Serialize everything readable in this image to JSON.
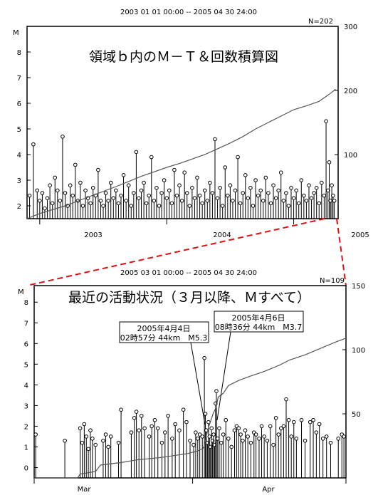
{
  "chart_data": [
    {
      "type": "scatter",
      "panel": "top",
      "header": "2003 01 01 00:00 -- 2005 04 30 24:00",
      "n_label": "N=202",
      "title": "領域ｂ内のＭ－Ｔ＆回数積算図",
      "y_axis_label": "M",
      "ylim": [
        1.5,
        9
      ],
      "y_ticks": [
        "2",
        "3",
        "4",
        "5",
        "6",
        "7",
        "8"
      ],
      "y2lim": [
        0,
        300
      ],
      "y2_ticks": [
        "100",
        "200",
        "300"
      ],
      "xlim": [
        2002.9,
        2005.35
      ],
      "x_tick_labels": [
        "2003",
        "2004",
        "2005"
      ],
      "grid": false,
      "events": [
        {
          "t": 2002.92,
          "m": 2.4
        },
        {
          "t": 2002.95,
          "m": 4.4
        },
        {
          "t": 2002.98,
          "m": 2.6
        },
        {
          "t": 2003.0,
          "m": 2.2
        },
        {
          "t": 2003.02,
          "m": 2.5
        },
        {
          "t": 2003.04,
          "m": 1.9
        },
        {
          "t": 2003.06,
          "m": 2.3
        },
        {
          "t": 2003.08,
          "m": 2.8
        },
        {
          "t": 2003.1,
          "m": 2.1
        },
        {
          "t": 2003.12,
          "m": 3.1
        },
        {
          "t": 2003.14,
          "m": 2.6
        },
        {
          "t": 2003.16,
          "m": 2.2
        },
        {
          "t": 2003.18,
          "m": 4.7
        },
        {
          "t": 2003.2,
          "m": 2.5
        },
        {
          "t": 2003.22,
          "m": 2.0
        },
        {
          "t": 2003.24,
          "m": 2.8
        },
        {
          "t": 2003.26,
          "m": 2.4
        },
        {
          "t": 2003.28,
          "m": 3.6
        },
        {
          "t": 2003.3,
          "m": 2.2
        },
        {
          "t": 2003.32,
          "m": 2.9
        },
        {
          "t": 2003.34,
          "m": 2.0
        },
        {
          "t": 2003.36,
          "m": 2.6
        },
        {
          "t": 2003.38,
          "m": 2.3
        },
        {
          "t": 2003.4,
          "m": 2.1
        },
        {
          "t": 2003.42,
          "m": 2.7
        },
        {
          "t": 2003.44,
          "m": 2.4
        },
        {
          "t": 2003.46,
          "m": 3.4
        },
        {
          "t": 2003.48,
          "m": 2.2
        },
        {
          "t": 2003.5,
          "m": 2.0
        },
        {
          "t": 2003.52,
          "m": 2.5
        },
        {
          "t": 2003.54,
          "m": 2.2
        },
        {
          "t": 2003.56,
          "m": 2.9
        },
        {
          "t": 2003.58,
          "m": 2.3
        },
        {
          "t": 2003.6,
          "m": 2.6
        },
        {
          "t": 2003.62,
          "m": 2.1
        },
        {
          "t": 2003.64,
          "m": 2.4
        },
        {
          "t": 2003.66,
          "m": 3.2
        },
        {
          "t": 2003.68,
          "m": 2.2
        },
        {
          "t": 2003.7,
          "m": 2.8
        },
        {
          "t": 2003.72,
          "m": 2.0
        },
        {
          "t": 2003.74,
          "m": 2.5
        },
        {
          "t": 2003.76,
          "m": 4.1
        },
        {
          "t": 2003.78,
          "m": 2.3
        },
        {
          "t": 2003.8,
          "m": 2.6
        },
        {
          "t": 2003.82,
          "m": 2.9
        },
        {
          "t": 2003.84,
          "m": 2.1
        },
        {
          "t": 2003.86,
          "m": 2.4
        },
        {
          "t": 2003.88,
          "m": 3.9
        },
        {
          "t": 2003.9,
          "m": 2.2
        },
        {
          "t": 2003.92,
          "m": 2.7
        },
        {
          "t": 2003.94,
          "m": 2.0
        },
        {
          "t": 2003.96,
          "m": 2.5
        },
        {
          "t": 2003.98,
          "m": 3.0
        },
        {
          "t": 2004.0,
          "m": 2.3
        },
        {
          "t": 2004.02,
          "m": 2.6
        },
        {
          "t": 2004.04,
          "m": 2.1
        },
        {
          "t": 2004.06,
          "m": 3.4
        },
        {
          "t": 2004.08,
          "m": 2.4
        },
        {
          "t": 2004.1,
          "m": 2.8
        },
        {
          "t": 2004.12,
          "m": 2.2
        },
        {
          "t": 2004.14,
          "m": 3.3
        },
        {
          "t": 2004.16,
          "m": 2.5
        },
        {
          "t": 2004.18,
          "m": 2.0
        },
        {
          "t": 2004.2,
          "m": 2.7
        },
        {
          "t": 2004.22,
          "m": 2.3
        },
        {
          "t": 2004.24,
          "m": 3.1
        },
        {
          "t": 2004.26,
          "m": 2.4
        },
        {
          "t": 2004.28,
          "m": 2.1
        },
        {
          "t": 2004.3,
          "m": 2.6
        },
        {
          "t": 2004.32,
          "m": 2.2
        },
        {
          "t": 2004.34,
          "m": 2.9
        },
        {
          "t": 2004.36,
          "m": 2.5
        },
        {
          "t": 2004.38,
          "m": 4.6
        },
        {
          "t": 2004.4,
          "m": 2.3
        },
        {
          "t": 2004.42,
          "m": 2.7
        },
        {
          "t": 2004.44,
          "m": 2.0
        },
        {
          "t": 2004.46,
          "m": 3.5
        },
        {
          "t": 2004.48,
          "m": 2.4
        },
        {
          "t": 2004.5,
          "m": 2.8
        },
        {
          "t": 2004.52,
          "m": 2.2
        },
        {
          "t": 2004.54,
          "m": 2.6
        },
        {
          "t": 2004.56,
          "m": 3.9
        },
        {
          "t": 2004.58,
          "m": 2.1
        },
        {
          "t": 2004.6,
          "m": 2.5
        },
        {
          "t": 2004.62,
          "m": 3.2
        },
        {
          "t": 2004.64,
          "m": 2.3
        },
        {
          "t": 2004.66,
          "m": 2.7
        },
        {
          "t": 2004.68,
          "m": 2.0
        },
        {
          "t": 2004.7,
          "m": 3.0
        },
        {
          "t": 2004.72,
          "m": 2.4
        },
        {
          "t": 2004.74,
          "m": 2.6
        },
        {
          "t": 2004.76,
          "m": 2.2
        },
        {
          "t": 2004.78,
          "m": 3.1
        },
        {
          "t": 2004.8,
          "m": 2.5
        },
        {
          "t": 2004.82,
          "m": 2.1
        },
        {
          "t": 2004.84,
          "m": 2.8
        },
        {
          "t": 2004.86,
          "m": 2.3
        },
        {
          "t": 2004.88,
          "m": 2.6
        },
        {
          "t": 2004.9,
          "m": 3.3
        },
        {
          "t": 2004.92,
          "m": 2.2
        },
        {
          "t": 2004.94,
          "m": 2.5
        },
        {
          "t": 2004.96,
          "m": 2.0
        },
        {
          "t": 2004.98,
          "m": 2.7
        },
        {
          "t": 2005.0,
          "m": 2.3
        },
        {
          "t": 2005.02,
          "m": 2.6
        },
        {
          "t": 2005.04,
          "m": 2.1
        },
        {
          "t": 2005.06,
          "m": 3.0
        },
        {
          "t": 2005.08,
          "m": 2.4
        },
        {
          "t": 2005.1,
          "m": 2.2
        },
        {
          "t": 2005.12,
          "m": 2.8
        },
        {
          "t": 2005.14,
          "m": 2.3
        },
        {
          "t": 2005.16,
          "m": 2.5
        },
        {
          "t": 2005.18,
          "m": 2.7
        },
        {
          "t": 2005.2,
          "m": 2.1
        },
        {
          "t": 2005.22,
          "m": 2.9
        },
        {
          "t": 2005.24,
          "m": 2.4
        },
        {
          "t": 2005.255,
          "m": 5.3
        },
        {
          "t": 2005.27,
          "m": 2.6
        },
        {
          "t": 2005.28,
          "m": 3.7
        },
        {
          "t": 2005.29,
          "m": 2.2
        },
        {
          "t": 2005.3,
          "m": 2.8
        },
        {
          "t": 2005.31,
          "m": 2.4
        },
        {
          "t": 2005.32,
          "m": 2.2
        }
      ],
      "cumulative": [
        [
          2002.9,
          0
        ],
        [
          2003.0,
          8
        ],
        [
          2003.2,
          20
        ],
        [
          2003.4,
          35
        ],
        [
          2003.6,
          50
        ],
        [
          2003.7,
          58
        ],
        [
          2003.8,
          66
        ],
        [
          2003.9,
          73
        ],
        [
          2004.0,
          80
        ],
        [
          2004.1,
          86
        ],
        [
          2004.2,
          93
        ],
        [
          2004.3,
          100
        ],
        [
          2004.4,
          109
        ],
        [
          2004.5,
          118
        ],
        [
          2004.6,
          128
        ],
        [
          2004.7,
          140
        ],
        [
          2004.8,
          150
        ],
        [
          2004.9,
          160
        ],
        [
          2005.0,
          170
        ],
        [
          2005.1,
          176
        ],
        [
          2005.2,
          183
        ],
        [
          2005.25,
          190
        ],
        [
          2005.3,
          197
        ],
        [
          2005.33,
          202
        ]
      ]
    },
    {
      "type": "scatter",
      "panel": "bottom",
      "header": "2005 03 01 00:00 -- 2005 04 30 24:00",
      "n_label": "N=109",
      "title": "最近の活動状況（３月以降、Ｍすべて）",
      "y_axis_label": "M",
      "ylim": [
        -0.5,
        8.8
      ],
      "y_ticks": [
        "0",
        "1",
        "2",
        "3",
        "4",
        "5",
        "6",
        "7",
        "8"
      ],
      "y2lim": [
        0,
        150
      ],
      "y2_ticks": [
        "50",
        "100",
        "150"
      ],
      "xlim": [
        0,
        61
      ],
      "x_tick_labels": [
        "Mar",
        "Apr"
      ],
      "grid": false,
      "annotations": [
        {
          "line1": "2005年4月4日",
          "line2": "02時57分 44km　M5.3"
        },
        {
          "line1": "2005年4月6日",
          "line2": "08時36分 44km　M3.7"
        }
      ],
      "events": [
        {
          "t": 0.3,
          "m": 1.6
        },
        {
          "t": 6.0,
          "m": 1.3
        },
        {
          "t": 9.0,
          "m": 1.9
        },
        {
          "t": 9.4,
          "m": 1.2
        },
        {
          "t": 9.8,
          "m": 2.1
        },
        {
          "t": 10.2,
          "m": 1.5
        },
        {
          "t": 10.6,
          "m": 0.9
        },
        {
          "t": 11.0,
          "m": 1.8
        },
        {
          "t": 11.4,
          "m": 1.4
        },
        {
          "t": 12.0,
          "m": 1.1
        },
        {
          "t": 13.5,
          "m": 1.3
        },
        {
          "t": 14.0,
          "m": 1.6
        },
        {
          "t": 14.5,
          "m": 1.0
        },
        {
          "t": 15.0,
          "m": 1.5
        },
        {
          "t": 16.5,
          "m": 1.2
        },
        {
          "t": 17.0,
          "m": 2.8
        },
        {
          "t": 19.0,
          "m": 1.7
        },
        {
          "t": 19.6,
          "m": 2.4
        },
        {
          "t": 20.0,
          "m": 2.7
        },
        {
          "t": 20.5,
          "m": 1.8
        },
        {
          "t": 21.0,
          "m": 2.5
        },
        {
          "t": 21.6,
          "m": 1.9
        },
        {
          "t": 22.5,
          "m": 1.5
        },
        {
          "t": 23.0,
          "m": 2.0
        },
        {
          "t": 23.6,
          "m": 2.3
        },
        {
          "t": 24.2,
          "m": 1.9
        },
        {
          "t": 25.0,
          "m": 1.2
        },
        {
          "t": 25.6,
          "m": 1.7
        },
        {
          "t": 26.2,
          "m": 2.5
        },
        {
          "t": 27.0,
          "m": 1.4
        },
        {
          "t": 27.6,
          "m": 2.1
        },
        {
          "t": 28.4,
          "m": 1.8
        },
        {
          "t": 29.2,
          "m": 2.8
        },
        {
          "t": 29.8,
          "m": 2.2
        },
        {
          "t": 30.5,
          "m": 1.3
        },
        {
          "t": 31.2,
          "m": 1.1
        },
        {
          "t": 31.6,
          "m": 1.7
        },
        {
          "t": 32.0,
          "m": 1.4
        },
        {
          "t": 32.4,
          "m": 1.6
        },
        {
          "t": 32.9,
          "m": 1.5
        },
        {
          "t": 33.3,
          "m": 5.3
        },
        {
          "t": 33.5,
          "m": 2.6
        },
        {
          "t": 33.7,
          "m": 1.8
        },
        {
          "t": 33.9,
          "m": 1.2
        },
        {
          "t": 34.1,
          "m": 2.2
        },
        {
          "t": 34.3,
          "m": 1.5
        },
        {
          "t": 34.5,
          "m": 1.0
        },
        {
          "t": 34.7,
          "m": 1.9
        },
        {
          "t": 34.9,
          "m": 1.3
        },
        {
          "t": 35.1,
          "m": 1.6
        },
        {
          "t": 35.3,
          "m": 1.1
        },
        {
          "t": 35.5,
          "m": 3.1
        },
        {
          "t": 35.65,
          "m": 3.7
        },
        {
          "t": 35.9,
          "m": 1.4
        },
        {
          "t": 36.2,
          "m": 1.9
        },
        {
          "t": 36.6,
          "m": 1.2
        },
        {
          "t": 37.0,
          "m": 1.6
        },
        {
          "t": 37.5,
          "m": 2.3
        },
        {
          "t": 38.0,
          "m": 1.4
        },
        {
          "t": 38.6,
          "m": 1.0
        },
        {
          "t": 39.2,
          "m": 1.8
        },
        {
          "t": 39.6,
          "m": 2.0
        },
        {
          "t": 40.0,
          "m": 1.9
        },
        {
          "t": 40.4,
          "m": 1.6
        },
        {
          "t": 40.8,
          "m": 1.3
        },
        {
          "t": 41.3,
          "m": 1.8
        },
        {
          "t": 41.8,
          "m": 1.5
        },
        {
          "t": 42.4,
          "m": 1.2
        },
        {
          "t": 43.0,
          "m": 1.7
        },
        {
          "t": 43.4,
          "m": 1.6
        },
        {
          "t": 44.0,
          "m": 1.4
        },
        {
          "t": 44.5,
          "m": 2.0
        },
        {
          "t": 45.0,
          "m": 1.5
        },
        {
          "t": 45.6,
          "m": 1.3
        },
        {
          "t": 46.2,
          "m": 2.0
        },
        {
          "t": 46.8,
          "m": 1.1
        },
        {
          "t": 47.3,
          "m": 2.4
        },
        {
          "t": 47.8,
          "m": 1.6
        },
        {
          "t": 48.3,
          "m": 1.9
        },
        {
          "t": 48.8,
          "m": 2.0
        },
        {
          "t": 49.3,
          "m": 3.3
        },
        {
          "t": 49.8,
          "m": 2.3
        },
        {
          "t": 50.3,
          "m": 1.5
        },
        {
          "t": 50.8,
          "m": 2.2
        },
        {
          "t": 51.3,
          "m": 1.4
        },
        {
          "t": 52.3,
          "m": 2.3
        },
        {
          "t": 53.0,
          "m": 1.3
        },
        {
          "t": 54.0,
          "m": 2.2
        },
        {
          "t": 54.6,
          "m": 2.3
        },
        {
          "t": 55.2,
          "m": 1.7
        },
        {
          "t": 55.8,
          "m": 2.1
        },
        {
          "t": 56.5,
          "m": 1.4
        },
        {
          "t": 57.2,
          "m": 1.5
        },
        {
          "t": 58.0,
          "m": 1.2
        },
        {
          "t": 59.5,
          "m": 1.4
        },
        {
          "t": 60.2,
          "m": 1.6
        },
        {
          "t": 60.6,
          "m": 1.5
        }
      ],
      "cumulative": [
        [
          0,
          0
        ],
        [
          8.5,
          0
        ],
        [
          9,
          3
        ],
        [
          12,
          5
        ],
        [
          13,
          10
        ],
        [
          17,
          12
        ],
        [
          20,
          14
        ],
        [
          25,
          16
        ],
        [
          30,
          19
        ],
        [
          32,
          21
        ],
        [
          33,
          23
        ],
        [
          33.3,
          25
        ],
        [
          34,
          38
        ],
        [
          35,
          50
        ],
        [
          35.6,
          55
        ],
        [
          36,
          63
        ],
        [
          37,
          66
        ],
        [
          38,
          72
        ],
        [
          40,
          76
        ],
        [
          42,
          79
        ],
        [
          45,
          83
        ],
        [
          48,
          88
        ],
        [
          50,
          92
        ],
        [
          53,
          96
        ],
        [
          56,
          101
        ],
        [
          59,
          106
        ],
        [
          61,
          109
        ]
      ]
    }
  ]
}
